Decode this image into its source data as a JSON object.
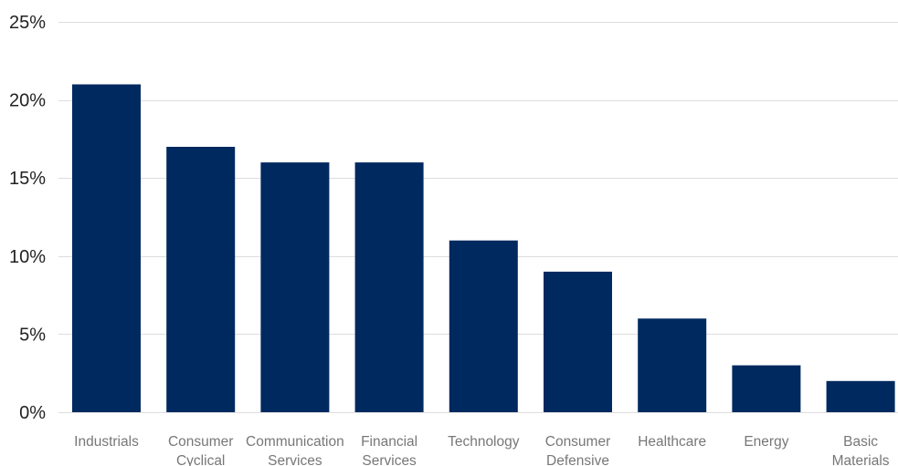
{
  "chart_data": {
    "type": "bar",
    "title": "",
    "xlabel": "",
    "ylabel": "",
    "categories": [
      [
        "Industrials"
      ],
      [
        "Consumer",
        "Cyclical"
      ],
      [
        "Communication",
        "Services"
      ],
      [
        "Financial",
        "Services"
      ],
      [
        "Technology"
      ],
      [
        "Consumer",
        "Defensive"
      ],
      [
        "Healthcare"
      ],
      [
        "Energy"
      ],
      [
        "Basic",
        "Materials"
      ]
    ],
    "values": [
      21,
      17,
      16,
      16,
      11,
      9,
      6,
      3,
      2
    ],
    "ylim": [
      0,
      25
    ],
    "y_ticks": [
      0,
      5,
      10,
      15,
      20,
      25
    ],
    "y_tick_labels": [
      "0%",
      "5%",
      "10%",
      "15%",
      "20%",
      "25%"
    ],
    "grid": true,
    "legend": "none",
    "colors": {
      "bar": "#002960",
      "grid": "#dddddd",
      "axis_text": "#222222",
      "category_text": "#777777"
    }
  }
}
